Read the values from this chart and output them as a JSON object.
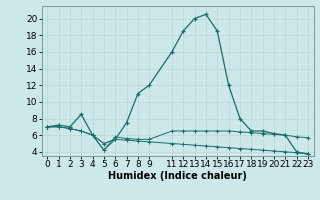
{
  "line1_x": [
    0,
    1,
    2,
    3,
    4,
    5,
    6,
    7,
    8,
    9,
    11,
    12,
    13,
    14,
    15,
    16,
    17,
    18,
    19,
    20,
    21,
    22,
    23
  ],
  "line1_y": [
    7.0,
    7.2,
    7.0,
    8.5,
    6.0,
    5.0,
    5.5,
    7.5,
    11.0,
    12.0,
    16.0,
    18.5,
    20.0,
    20.5,
    18.5,
    12.0,
    8.0,
    6.5,
    6.5,
    6.2,
    6.0,
    4.0,
    3.7
  ],
  "line2_x": [
    0,
    1,
    2,
    3,
    4,
    5,
    6,
    7,
    8,
    9,
    11,
    12,
    13,
    14,
    15,
    16,
    17,
    18,
    19,
    20,
    21,
    22,
    23
  ],
  "line2_y": [
    7.0,
    7.0,
    6.8,
    6.5,
    6.0,
    4.2,
    5.8,
    5.6,
    5.5,
    5.5,
    6.5,
    6.5,
    6.5,
    6.5,
    6.5,
    6.5,
    6.4,
    6.3,
    6.2,
    6.1,
    6.0,
    5.8,
    5.7
  ],
  "line3_x": [
    0,
    1,
    2,
    3,
    4,
    5,
    6,
    7,
    8,
    9,
    11,
    12,
    13,
    14,
    15,
    16,
    17,
    18,
    19,
    20,
    21,
    22,
    23
  ],
  "line3_y": [
    7.0,
    7.0,
    6.8,
    6.5,
    6.0,
    4.2,
    5.5,
    5.4,
    5.3,
    5.2,
    5.0,
    4.9,
    4.8,
    4.7,
    4.6,
    4.5,
    4.4,
    4.3,
    4.2,
    4.1,
    4.0,
    3.9,
    3.8
  ],
  "bg_color": "#cde8e8",
  "grid_color": "#b8d8d8",
  "line_color": "#1a6b6b",
  "xlabel": "Humidex (Indice chaleur)",
  "xlim": [
    -0.5,
    23.5
  ],
  "ylim": [
    3.5,
    21.5
  ],
  "yticks": [
    4,
    6,
    8,
    10,
    12,
    14,
    16,
    18,
    20
  ],
  "xticks": [
    0,
    1,
    2,
    3,
    4,
    5,
    6,
    7,
    8,
    9,
    11,
    12,
    13,
    14,
    15,
    16,
    17,
    18,
    19,
    20,
    21,
    22,
    23
  ],
  "fontsize": 6.5
}
